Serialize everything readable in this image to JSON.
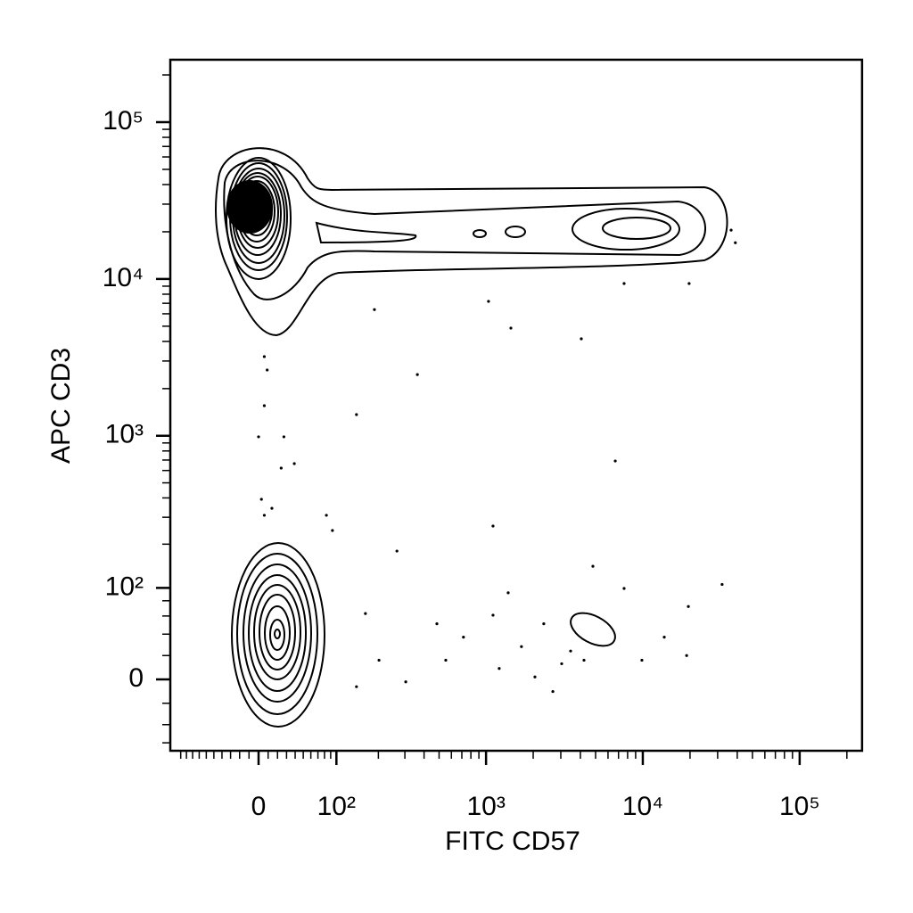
{
  "chart_data": {
    "type": "scatter",
    "x_label": "FITC CD57",
    "y_label": "APC CD3",
    "scale": "biexponential",
    "color": "#000000",
    "xlim": [
      -120,
      250000
    ],
    "ylim": [
      -70,
      250000
    ],
    "xticks": [
      0,
      {
        "value": 100,
        "label": "10²"
      },
      {
        "value": 1000,
        "label": "10³"
      },
      {
        "value": 10000,
        "label": "10⁴"
      },
      {
        "value": 100000,
        "label": "10⁵"
      }
    ],
    "yticks": [
      0,
      {
        "value": 100,
        "label": "10²"
      },
      {
        "value": 1000,
        "label": "10³"
      },
      {
        "value": 10000,
        "label": "10⁴"
      },
      {
        "value": 100000,
        "label": "10⁵"
      }
    ],
    "xminor": [
      -100,
      -90,
      -80,
      -70,
      -60,
      -50,
      -40,
      -30,
      -20,
      -10,
      10,
      20,
      30,
      40,
      50,
      60,
      70,
      80,
      90,
      200,
      300,
      400,
      500,
      600,
      700,
      800,
      900,
      2000,
      3000,
      4000,
      5000,
      6000,
      7000,
      8000,
      9000,
      20000,
      30000,
      40000,
      50000,
      60000,
      70000,
      80000,
      90000,
      200000
    ],
    "yminor": [
      -60,
      -40,
      -20,
      20,
      40,
      60,
      80,
      200,
      300,
      400,
      500,
      600,
      700,
      800,
      900,
      2000,
      3000,
      4000,
      5000,
      6000,
      7000,
      8000,
      9000,
      20000,
      30000,
      40000,
      50000,
      60000,
      70000,
      80000,
      90000,
      200000
    ],
    "x": [
      6,
      9,
      6,
      0,
      27,
      24,
      39,
      14,
      6,
      3,
      83,
      93,
      141,
      362,
      266,
      1108,
      6674,
      4054,
      1441,
      1037,
      188,
      19738,
      7597,
      36565,
      38908,
      163,
      141,
      202,
      304,
      484,
      552,
      717,
      1108,
      1385,
      1683,
      2336,
      2670,
      4217,
      4807,
      7597,
      9869,
      13703,
      19028,
      32021,
      19525,
      2052,
      3465,
      1214,
      3039
    ],
    "values": [
      3200,
      2630,
      1557,
      985,
      985,
      622,
      664,
      343,
      309,
      392,
      309,
      246,
      1366,
      2458,
      180,
      263,
      690,
      4155,
      4861,
      7202,
      6384,
      9352,
      9352,
      20496,
      17024,
      63,
      -6,
      16,
      -2,
      51,
      16,
      37,
      61,
      92,
      28,
      51,
      -10,
      16,
      142,
      99,
      16,
      37,
      20,
      106,
      72,
      2,
      24,
      9,
      13
    ]
  }
}
